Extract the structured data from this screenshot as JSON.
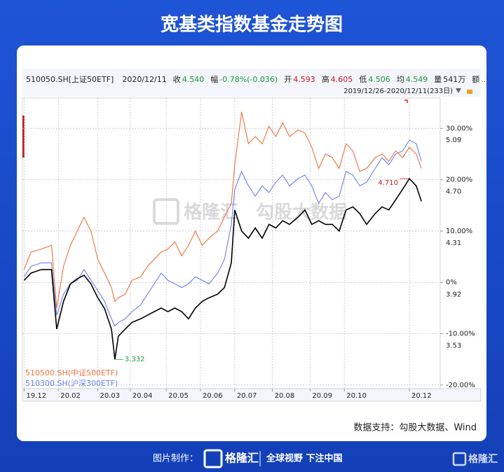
{
  "title": "宽基类指数基金走势图",
  "chart_data": {
    "type": "line",
    "x": [
      0,
      4,
      10,
      16,
      19,
      23,
      27,
      31,
      35,
      39,
      43,
      47,
      51,
      53,
      55,
      59,
      63,
      68,
      72,
      76,
      80,
      84,
      88,
      92,
      96,
      100,
      104,
      108,
      113,
      117,
      121,
      123,
      127,
      131,
      135,
      139,
      143,
      147,
      151,
      155,
      160,
      164,
      168,
      172,
      176,
      180,
      184,
      188,
      192,
      196,
      200,
      205,
      209,
      213,
      217,
      221,
      225,
      229,
      232
    ],
    "xlim": [
      -1,
      243
    ],
    "xticks": [
      {
        "value": 0,
        "label": "19.12"
      },
      {
        "value": 20,
        "label": "20.02"
      },
      {
        "value": 43,
        "label": "20.03"
      },
      {
        "value": 62,
        "label": "20.04"
      },
      {
        "value": 83,
        "label": "20.05"
      },
      {
        "value": 103,
        "label": "20.06"
      },
      {
        "value": 123,
        "label": "20.07"
      },
      {
        "value": 145,
        "label": "20.08"
      },
      {
        "value": 167,
        "label": "20.09"
      },
      {
        "value": 187,
        "label": "20.10"
      },
      {
        "value": 225,
        "label": "20.12"
      }
    ],
    "ylim": [
      -20.7,
      35.9
    ],
    "yticks": [
      {
        "value": 30,
        "label": "30.00%"
      },
      {
        "value": 20,
        "label": "20.00%"
      },
      {
        "value": 10,
        "label": "10.00%"
      },
      {
        "value": 0,
        "label": "0%"
      },
      {
        "value": -10,
        "label": "-10.00%"
      },
      {
        "value": -20,
        "label": "-20.00%"
      }
    ],
    "y2lim": [
      3.113,
      5.32
    ],
    "y2ticks": [
      5.09,
      {
        "value": 4.7,
        "label": "4.70"
      },
      4.31,
      3.92,
      3.53
    ],
    "grid": true,
    "series": [
      {
        "name": "510050.SH[上证50ETF]",
        "color": "#000000",
        "values": [
          0.4,
          1.8,
          2.5,
          2.5,
          -9.1,
          -3.7,
          -0.3,
          0.7,
          1.4,
          -0.3,
          -3.0,
          -5.1,
          -9.1,
          -15.0,
          -10.5,
          -9.1,
          -7.8,
          -7.1,
          -6.4,
          -5.7,
          -5.0,
          -5.7,
          -5.0,
          -5.7,
          -7.1,
          -5.0,
          -3.7,
          -3.0,
          -2.3,
          -1.0,
          3.8,
          14.1,
          10.0,
          8.6,
          10.6,
          8.6,
          11.3,
          10.6,
          12.0,
          11.3,
          12.7,
          14.1,
          11.3,
          12.0,
          11.3,
          11.3,
          10.0,
          14.1,
          14.7,
          13.4,
          11.3,
          13.4,
          14.7,
          14.1,
          16.1,
          18.1,
          20.2,
          18.8,
          15.8
        ]
      },
      {
        "name": "510500.SH(中证500ETF)",
        "color": "#f0703a",
        "values": [
          2.5,
          5.9,
          6.5,
          7.2,
          -5.0,
          3.1,
          7.2,
          10.0,
          12.7,
          10.0,
          4.5,
          1.8,
          -1.0,
          -3.7,
          -3.0,
          -2.3,
          0.4,
          1.1,
          3.1,
          4.5,
          5.9,
          6.5,
          7.9,
          5.2,
          7.2,
          10.0,
          7.2,
          8.6,
          10.0,
          12.7,
          15.4,
          22.9,
          33.2,
          27.0,
          28.4,
          27.0,
          30.4,
          28.4,
          31.1,
          28.4,
          29.7,
          29.1,
          26.3,
          22.2,
          25.0,
          24.3,
          22.2,
          27.0,
          25.6,
          21.6,
          22.2,
          24.3,
          25.0,
          23.6,
          25.6,
          24.3,
          26.3,
          25.0,
          22.2
        ]
      },
      {
        "name": "510300.SH(沪深300ETF)",
        "color": "#6a7ff0",
        "values": [
          1.1,
          3.1,
          3.8,
          3.8,
          -6.4,
          -2.3,
          -0.3,
          0.4,
          2.5,
          0.4,
          -1.6,
          -3.7,
          -7.1,
          -8.5,
          -7.8,
          -7.1,
          -5.7,
          -4.4,
          -2.3,
          -0.3,
          1.8,
          0.4,
          -0.3,
          -1.0,
          -0.3,
          1.1,
          0.4,
          -0.3,
          1.8,
          4.5,
          11.3,
          18.1,
          21.6,
          18.8,
          16.8,
          18.8,
          17.5,
          19.5,
          20.9,
          18.8,
          20.2,
          20.9,
          18.8,
          15.4,
          17.5,
          16.1,
          16.8,
          21.6,
          20.9,
          18.8,
          19.5,
          22.2,
          24.3,
          22.9,
          25.0,
          25.6,
          27.7,
          27.0,
          23.6
        ]
      }
    ],
    "annotations": [
      {
        "text": "4.710",
        "color": "#d0181e"
      },
      {
        "text": "3.332",
        "color": "#1a9a3a"
      }
    ]
  },
  "quote_bar": {
    "date": "2020/12/11",
    "items": [
      {
        "label": "收",
        "value": "4.540",
        "color": "#1a9a3a"
      },
      {
        "label": "幅",
        "value": "-0.78%(-0.036)",
        "color": "#1a9a3a"
      },
      {
        "label": "开",
        "value": "4.593",
        "color": "#d0181e"
      },
      {
        "label": "高",
        "value": "4.605",
        "color": "#d0181e"
      },
      {
        "label": "低",
        "value": "4.506",
        "color": "#1a9a3a"
      },
      {
        "label": "均",
        "value": "4.549",
        "color": "#1a9a3a"
      },
      {
        "label": "量",
        "value": "541万",
        "color": "#222222"
      },
      {
        "label": "额",
        "value": "...",
        "color": "#d0181e"
      }
    ],
    "range": "2019/12/26-2020/12/11(233日)"
  },
  "watermark": [
    "格隆汇",
    "勾股大数据"
  ],
  "source": "数据支持：勾股大数据、Wind",
  "footer": {
    "maker": "图片制作：",
    "logo": "格隆汇",
    "slogan": "全球视野 下注中国",
    "brand": "格隆汇"
  }
}
